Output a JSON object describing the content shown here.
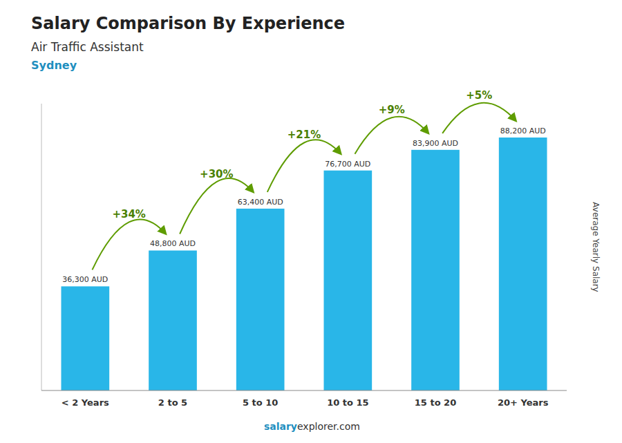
{
  "chart_data": {
    "type": "bar",
    "title": "Salary Comparison By Experience",
    "subtitle": [
      "Air Traffic Assistant",
      "Sydney"
    ],
    "categories": [
      "< 2 Years",
      "2 to 5",
      "5 to 10",
      "10 to 15",
      "15 to 20",
      "20+ Years"
    ],
    "values": [
      36300,
      48800,
      63400,
      76700,
      83900,
      88200
    ],
    "value_labels": [
      "36,300 AUD",
      "48,800 AUD",
      "63,400 AUD",
      "76,700 AUD",
      "83,900 AUD",
      "88,200 AUD"
    ],
    "data_labels": true,
    "color": "#29b6e8",
    "y_label": "Average Yearly Salary",
    "ylim": [
      0,
      100000
    ],
    "tick_labels": "x",
    "grid": false,
    "annotations": [
      "+34%",
      "+30%",
      "+21%",
      "+9%",
      "+5%"
    ],
    "footer": [
      "salary",
      "explorer.com"
    ]
  }
}
